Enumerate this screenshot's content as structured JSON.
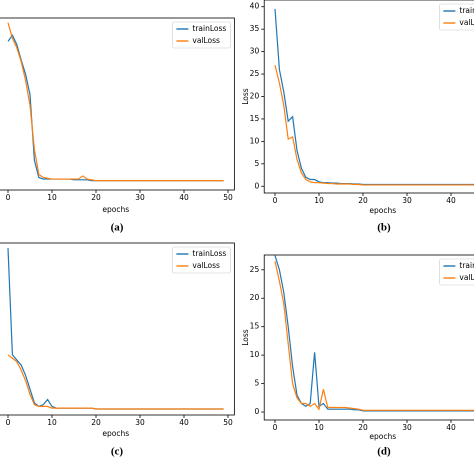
{
  "chart_data": [
    {
      "type": "line",
      "caption": "(a)",
      "xlabel": "epochs",
      "legend": "upper right",
      "x": [
        0,
        1,
        2,
        3,
        4,
        5,
        6,
        7,
        8,
        9,
        10,
        11,
        12,
        13,
        14,
        15,
        16,
        17,
        18,
        19,
        20,
        21,
        22,
        23,
        24,
        25,
        26,
        27,
        28,
        29,
        30,
        31,
        32,
        33,
        34,
        35,
        36,
        37,
        38,
        39,
        40,
        41,
        42,
        43,
        44,
        45,
        46,
        47,
        48,
        49
      ],
      "xlim": [
        -2.45,
        51.45
      ],
      "xticks": [
        0,
        10,
        20,
        30,
        40,
        50
      ],
      "ylim": [
        -0.05,
        1.05
      ],
      "series": [
        {
          "name": "trainLoss",
          "color": "#1f77b4",
          "values": [
            0.9,
            0.94,
            0.88,
            0.78,
            0.69,
            0.56,
            0.14,
            0.03,
            0.02,
            0.02,
            0.02,
            0.02,
            0.02,
            0.02,
            0.02,
            0.015,
            0.015,
            0.015,
            0.015,
            0.01,
            0.01,
            0.01,
            0.01,
            0.01,
            0.01,
            0.01,
            0.01,
            0.01,
            0.01,
            0.01,
            0.01,
            0.01,
            0.01,
            0.01,
            0.01,
            0.01,
            0.01,
            0.01,
            0.01,
            0.01,
            0.01,
            0.01,
            0.01,
            0.01,
            0.01,
            0.01,
            0.01,
            0.01,
            0.01,
            0.01
          ]
        },
        {
          "name": "valLoss",
          "color": "#ff7f0e",
          "values": [
            1.02,
            0.92,
            0.86,
            0.77,
            0.65,
            0.49,
            0.21,
            0.05,
            0.03,
            0.025,
            0.02,
            0.02,
            0.02,
            0.02,
            0.02,
            0.02,
            0.02,
            0.04,
            0.02,
            0.015,
            0.01,
            0.01,
            0.01,
            0.01,
            0.01,
            0.01,
            0.01,
            0.01,
            0.01,
            0.01,
            0.01,
            0.01,
            0.01,
            0.01,
            0.01,
            0.01,
            0.01,
            0.01,
            0.01,
            0.01,
            0.01,
            0.01,
            0.01,
            0.01,
            0.01,
            0.01,
            0.01,
            0.01,
            0.01,
            0.01
          ]
        }
      ]
    },
    {
      "type": "line",
      "caption": "(b)",
      "xlabel": "epochs",
      "ylabel": "Loss",
      "legend": "upper right",
      "x": [
        0,
        1,
        2,
        3,
        4,
        5,
        6,
        7,
        8,
        9,
        10,
        11,
        12,
        13,
        14,
        15,
        16,
        17,
        18,
        19,
        20,
        21,
        22,
        23,
        24,
        25,
        26,
        27,
        28,
        29,
        30,
        31,
        32,
        33,
        34,
        35,
        36,
        37,
        38,
        39,
        40,
        41,
        42,
        43,
        44,
        45,
        46,
        47,
        48,
        49
      ],
      "xlim": [
        -2.45,
        51.45
      ],
      "xticks": [
        0,
        10,
        20,
        30,
        40
      ],
      "ylim": [
        -1.5,
        41.5
      ],
      "yticks": [
        0,
        5,
        10,
        15,
        20,
        25,
        30,
        35,
        40
      ],
      "series": [
        {
          "name": "trainLoss",
          "color": "#1f77b4",
          "values": [
            39.5,
            26,
            21,
            14.5,
            15.5,
            8,
            4,
            2,
            1.5,
            1.5,
            1,
            0.8,
            0.8,
            0.7,
            0.7,
            0.6,
            0.6,
            0.6,
            0.5,
            0.5,
            0.4,
            0.4,
            0.4,
            0.4,
            0.4,
            0.4,
            0.4,
            0.4,
            0.4,
            0.4,
            0.4,
            0.4,
            0.4,
            0.4,
            0.4,
            0.4,
            0.4,
            0.4,
            0.4,
            0.4,
            0.4,
            0.4,
            0.4,
            0.4,
            0.4,
            0.4,
            0.4,
            0.4,
            0.4,
            0.4
          ]
        },
        {
          "name": "valLoss",
          "color": "#ff7f0e",
          "values": [
            27,
            23,
            18,
            10.5,
            11,
            6,
            3,
            1.5,
            1,
            0.8,
            0.8,
            0.7,
            0.6,
            0.6,
            0.5,
            0.5,
            0.5,
            0.5,
            0.4,
            0.4,
            0.3,
            0.3,
            0.3,
            0.3,
            0.3,
            0.3,
            0.3,
            0.3,
            0.3,
            0.3,
            0.3,
            0.3,
            0.3,
            0.3,
            0.3,
            0.3,
            0.3,
            0.3,
            0.3,
            0.3,
            0.3,
            0.3,
            0.3,
            0.3,
            0.3,
            0.3,
            0.3,
            0.3,
            0.3,
            0.3
          ]
        }
      ]
    },
    {
      "type": "line",
      "caption": "(c)",
      "xlabel": "epochs",
      "legend": "upper right",
      "x": [
        0,
        1,
        2,
        3,
        4,
        5,
        6,
        7,
        8,
        9,
        10,
        11,
        12,
        13,
        14,
        15,
        16,
        17,
        18,
        19,
        20,
        21,
        22,
        23,
        24,
        25,
        26,
        27,
        28,
        29,
        30,
        31,
        32,
        33,
        34,
        35,
        36,
        37,
        38,
        39,
        40,
        41,
        42,
        43,
        44,
        45,
        46,
        47,
        48,
        49
      ],
      "xlim": [
        -2.45,
        51.45
      ],
      "xticks": [
        0,
        10,
        20,
        30,
        40,
        50
      ],
      "ylim": [
        0,
        1
      ],
      "series": [
        {
          "name": "trainLoss",
          "color": "#1f77b4",
          "values": [
            0.97,
            0.35,
            0.32,
            0.29,
            0.23,
            0.15,
            0.07,
            0.05,
            0.06,
            0.09,
            0.05,
            0.04,
            0.04,
            0.04,
            0.04,
            0.04,
            0.04,
            0.04,
            0.04,
            0.04,
            0.035,
            0.035,
            0.035,
            0.035,
            0.035,
            0.035,
            0.035,
            0.035,
            0.035,
            0.035,
            0.035,
            0.035,
            0.035,
            0.035,
            0.035,
            0.035,
            0.035,
            0.035,
            0.035,
            0.035,
            0.035,
            0.035,
            0.035,
            0.035,
            0.035,
            0.035,
            0.035,
            0.035,
            0.035,
            0.035
          ]
        },
        {
          "name": "valLoss",
          "color": "#ff7f0e",
          "values": [
            0.35,
            0.33,
            0.31,
            0.26,
            0.2,
            0.12,
            0.06,
            0.05,
            0.05,
            0.05,
            0.04,
            0.04,
            0.04,
            0.04,
            0.04,
            0.04,
            0.04,
            0.04,
            0.04,
            0.04,
            0.035,
            0.035,
            0.035,
            0.035,
            0.035,
            0.035,
            0.035,
            0.035,
            0.035,
            0.035,
            0.035,
            0.035,
            0.035,
            0.035,
            0.035,
            0.035,
            0.035,
            0.035,
            0.035,
            0.035,
            0.035,
            0.035,
            0.035,
            0.035,
            0.035,
            0.035,
            0.035,
            0.035,
            0.035,
            0.035
          ]
        }
      ]
    },
    {
      "type": "line",
      "caption": "(d)",
      "xlabel": "epochs",
      "ylabel": "Loss",
      "legend": "upper right",
      "x": [
        0,
        1,
        2,
        3,
        4,
        5,
        6,
        7,
        8,
        9,
        10,
        11,
        12,
        13,
        14,
        15,
        16,
        17,
        18,
        19,
        20,
        21,
        22,
        23,
        24,
        25,
        26,
        27,
        28,
        29,
        30,
        31,
        32,
        33,
        34,
        35,
        36,
        37,
        38,
        39,
        40,
        41,
        42,
        43,
        44,
        45,
        46,
        47,
        48,
        49
      ],
      "xlim": [
        -2.45,
        51.45
      ],
      "xticks": [
        0,
        10,
        20,
        30,
        40
      ],
      "ylim": [
        -1.4,
        27.6
      ],
      "yticks": [
        0,
        5,
        10,
        15,
        20,
        25
      ],
      "series": [
        {
          "name": "trainLoss",
          "color": "#1f77b4",
          "values": [
            27.5,
            25,
            21,
            15,
            8,
            3,
            1.5,
            1,
            1.5,
            10.5,
            1,
            1.5,
            0.5,
            0.5,
            0.5,
            0.5,
            0.5,
            0.5,
            0.4,
            0.4,
            0.2,
            0.2,
            0.2,
            0.2,
            0.2,
            0.2,
            0.2,
            0.2,
            0.2,
            0.2,
            0.2,
            0.2,
            0.2,
            0.2,
            0.2,
            0.2,
            0.2,
            0.2,
            0.2,
            0.2,
            0.2,
            0.2,
            0.2,
            0.2,
            0.2,
            0.2,
            0.2,
            0.2,
            0.2,
            0.2
          ]
        },
        {
          "name": "valLoss",
          "color": "#ff7f0e",
          "values": [
            26.5,
            23,
            19,
            12,
            5,
            2.5,
            1.5,
            1.5,
            1,
            1.5,
            0.5,
            4,
            0.8,
            0.8,
            0.8,
            0.8,
            0.8,
            0.7,
            0.6,
            0.5,
            0.3,
            0.3,
            0.3,
            0.3,
            0.3,
            0.3,
            0.3,
            0.3,
            0.3,
            0.3,
            0.3,
            0.3,
            0.3,
            0.3,
            0.3,
            0.3,
            0.3,
            0.3,
            0.3,
            0.3,
            0.3,
            0.3,
            0.3,
            0.3,
            0.3,
            0.3,
            0.3,
            0.3,
            0.3,
            0.3
          ]
        }
      ]
    }
  ]
}
